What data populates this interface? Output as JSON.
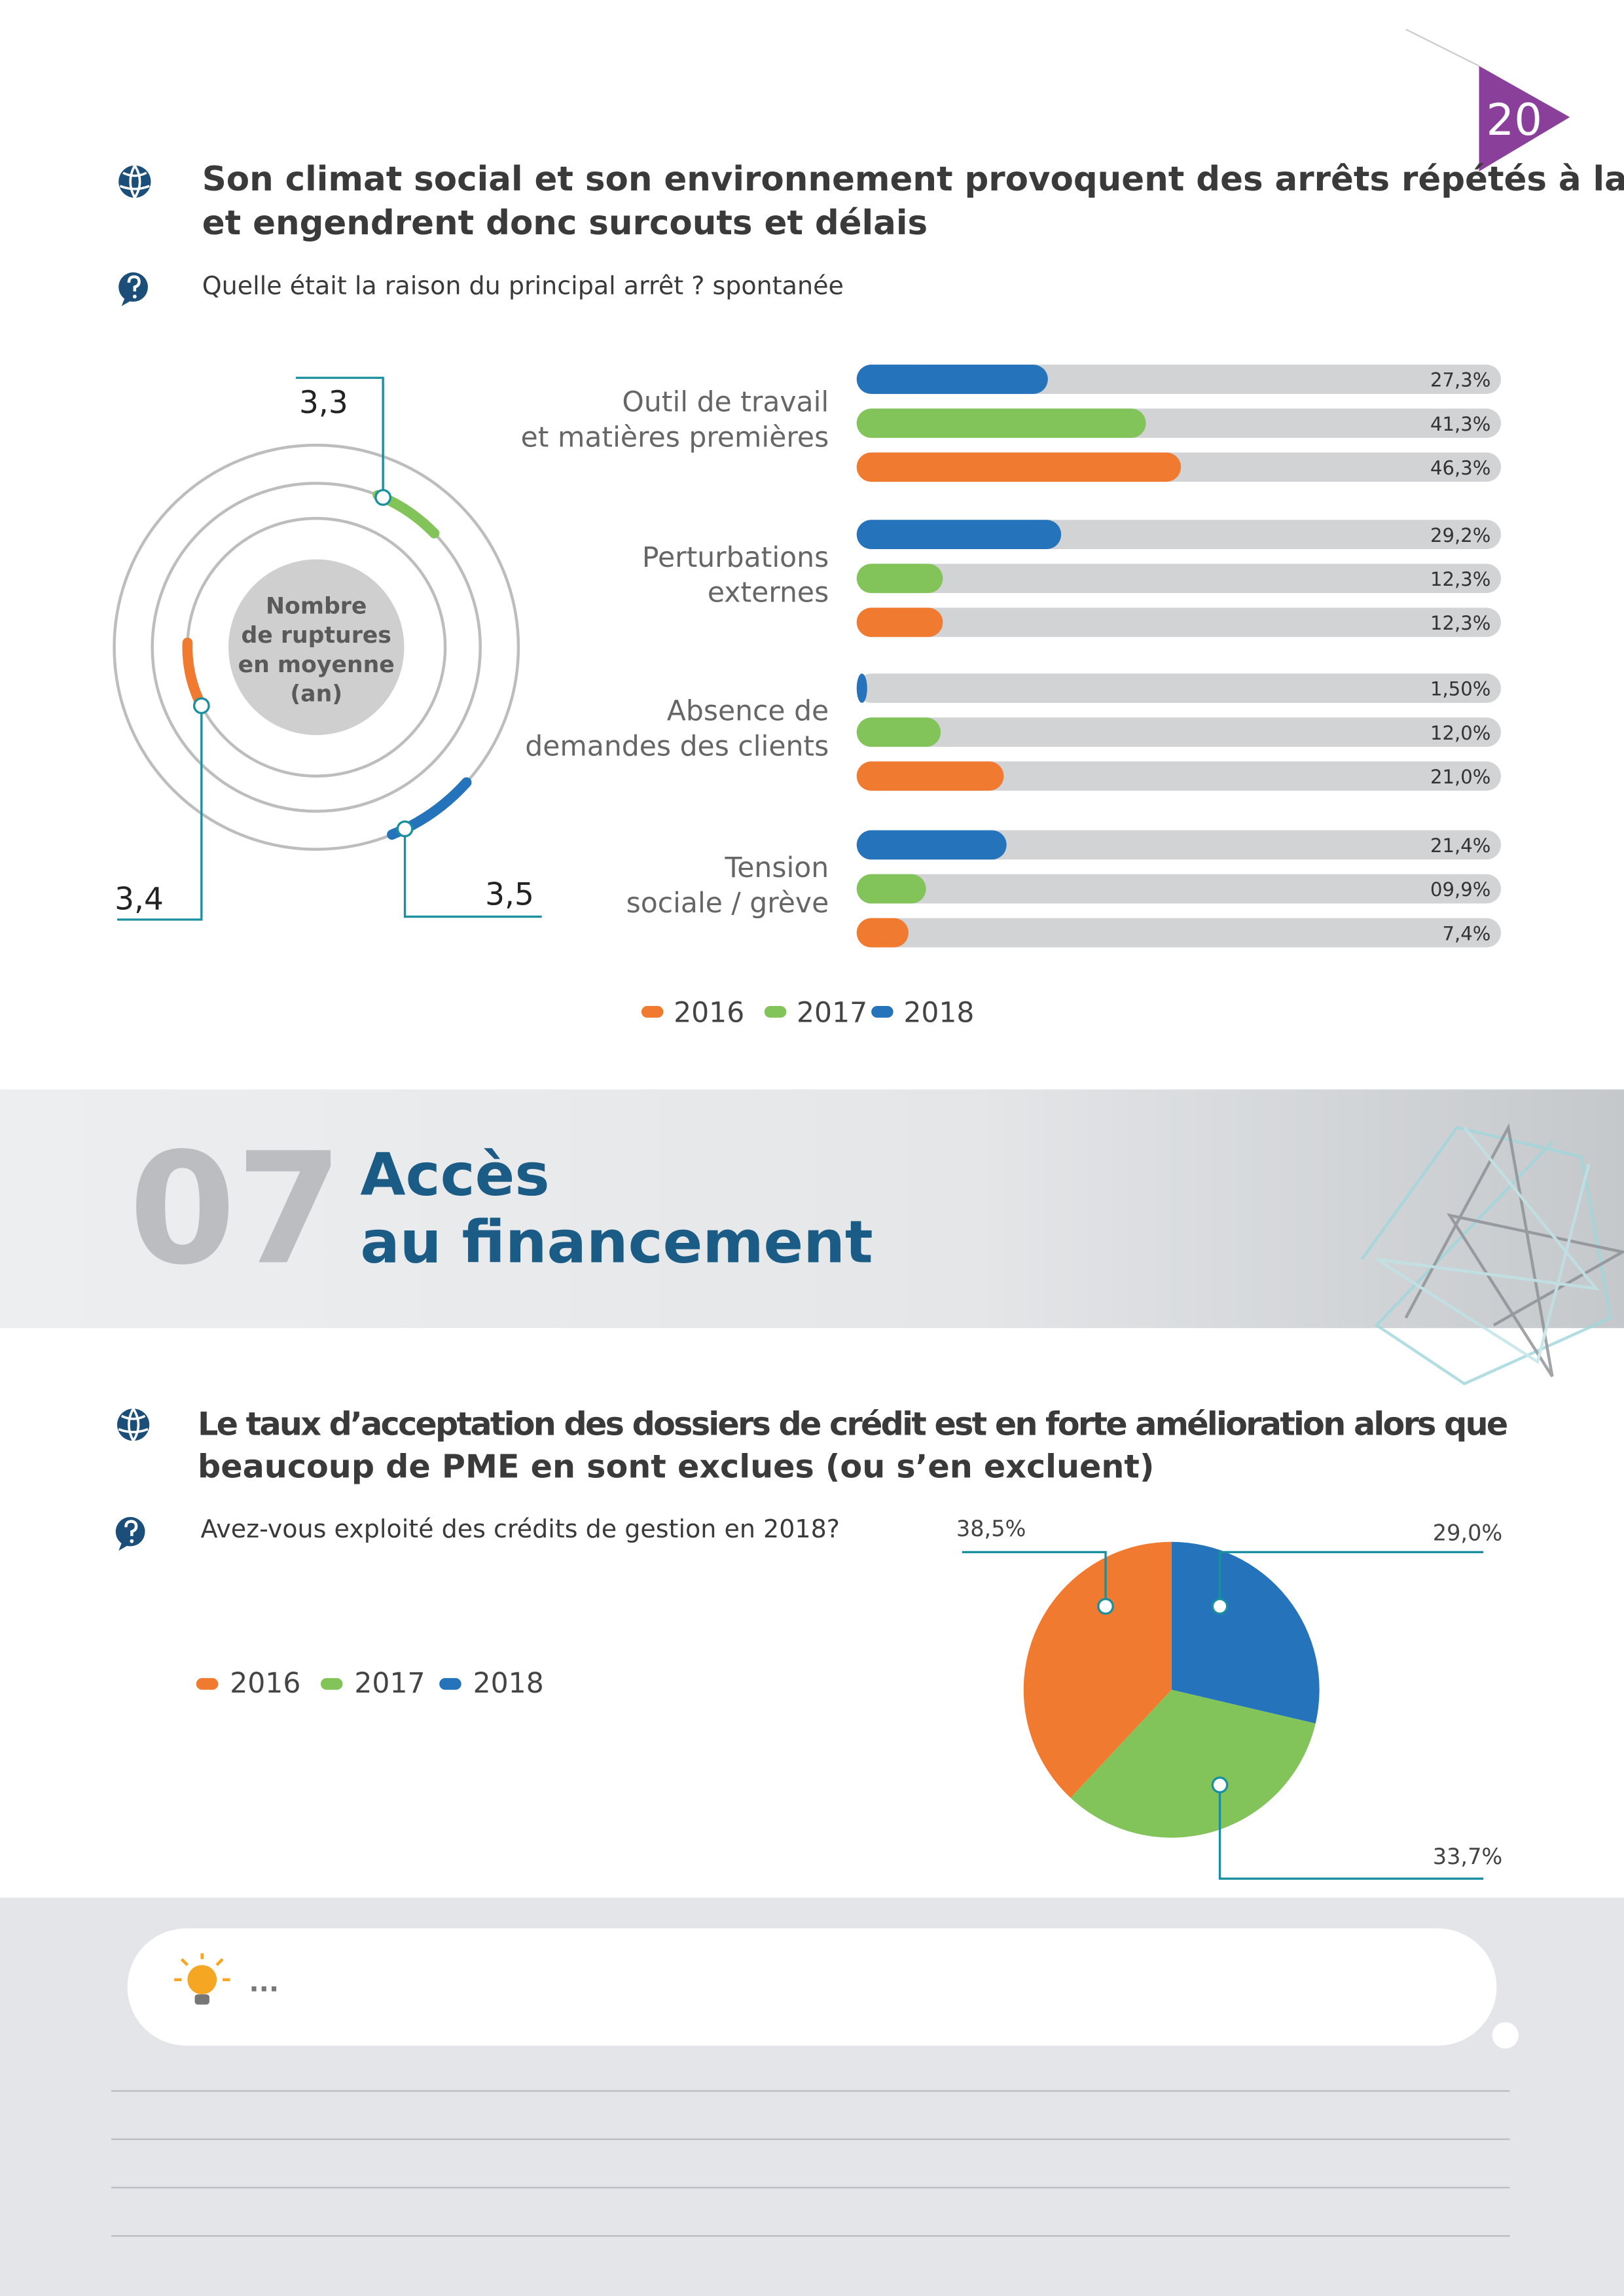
{
  "page_number": "20",
  "survey": {
    "heading": [
      "Son climat social et son environnement provoquent des arrêts répétés à la PME",
      "et engendrent donc surcouts et délais"
    ],
    "question": "Quelle était la raison du principal arrêt ? spontanée"
  },
  "section": {
    "number": "07",
    "title": [
      "Accès",
      "au financement"
    ]
  },
  "credit": {
    "heading": [
      "Le taux d’acceptation des dossiers de crédit est en forte amélioration alors que",
      "beaucoup de PME en sont exclues (ou s’en excluent)"
    ],
    "question": "Avez-vous exploité des crédits de gestion en 2018?"
  },
  "notes": {
    "placeholder": "..."
  },
  "chart_data": [
    {
      "type": "radial",
      "center_label": [
        "Nombre",
        "de ruptures",
        "en moyenne",
        "(an)"
      ],
      "values": [
        3.4,
        3.3,
        3.5
      ],
      "value_labels": [
        "3,4",
        "3,3",
        "3,5"
      ],
      "colors": [
        "#f07a2f",
        "#82c45a",
        "#2574bb"
      ]
    },
    {
      "type": "bar",
      "orientation": "horizontal",
      "categories": [
        [
          "Outil de travail",
          "et matières premières"
        ],
        [
          "Perturbations",
          "externes"
        ],
        [
          "Absence de",
          "demandes des clients"
        ],
        [
          "Tension",
          "sociale / grève"
        ]
      ],
      "series": [
        {
          "name": "2016",
          "color": "#f07a2f",
          "values": [
            46.3,
            12.3,
            21.0,
            7.4
          ],
          "value_labels": [
            "46,3%",
            "12,3%",
            "21,0%",
            "7,4%"
          ]
        },
        {
          "name": "2017",
          "color": "#82c45a",
          "values": [
            41.3,
            12.3,
            12.0,
            9.9
          ],
          "value_labels": [
            "41,3%",
            "12,3%",
            "12,0%",
            "09,9%"
          ]
        },
        {
          "name": "2018",
          "color": "#2574bb",
          "values": [
            27.3,
            29.2,
            1.5,
            21.4
          ],
          "value_labels": [
            "27,3%",
            "29,2%",
            "1,50%",
            "21,4%"
          ]
        }
      ],
      "xlim": [
        0,
        92
      ]
    },
    {
      "type": "pie",
      "categories": [
        "2016",
        "2017",
        "2018"
      ],
      "values": [
        38.5,
        33.7,
        29.0
      ],
      "value_labels": [
        "38,5%",
        "33,7%",
        "29,0%"
      ],
      "colors": [
        "#f07a2f",
        "#82c45a",
        "#2574bb"
      ]
    }
  ]
}
